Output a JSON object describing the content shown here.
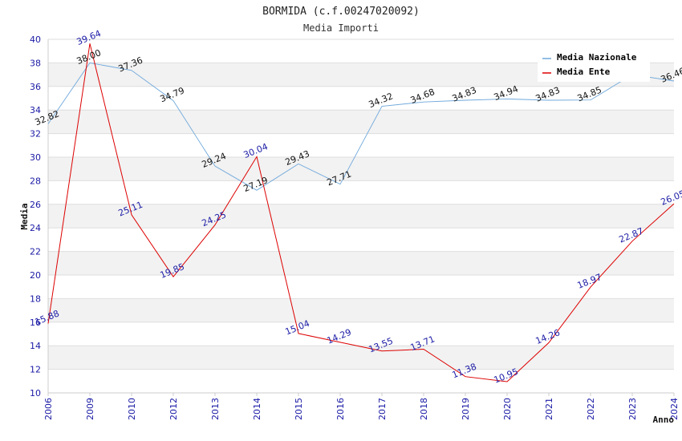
{
  "chart_data": {
    "type": "line",
    "title": "BORMIDA (c.f.00247020092)",
    "subtitle": "Media Importi",
    "xlabel": "Anno",
    "ylabel": "Media",
    "ylim": [
      10,
      40
    ],
    "yticks": [
      10,
      12,
      14,
      16,
      18,
      20,
      22,
      24,
      26,
      28,
      30,
      32,
      34,
      36,
      38,
      40
    ],
    "categories": [
      "2006",
      "2009",
      "2010",
      "2012",
      "2013",
      "2014",
      "2015",
      "2016",
      "2017",
      "2018",
      "2019",
      "2020",
      "2021",
      "2022",
      "2023",
      "2024"
    ],
    "series": [
      {
        "name": "Media Nazionale",
        "color": "#6fa8dc",
        "values": [
          32.82,
          38.0,
          37.36,
          34.79,
          29.24,
          27.19,
          29.43,
          27.71,
          34.32,
          34.68,
          34.83,
          34.94,
          34.83,
          34.85,
          37.0,
          36.46
        ],
        "labels": [
          "32.82",
          "38.00",
          "37.36",
          "34.79",
          "29.24",
          "27.19",
          "29.43",
          "27.71",
          "34.32",
          "34.68",
          "34.83",
          "34.94",
          "34.83",
          "34.85",
          "",
          "36.46"
        ]
      },
      {
        "name": "Media Ente",
        "color": "#dd0000",
        "values": [
          15.88,
          39.64,
          25.11,
          19.85,
          24.25,
          30.04,
          15.04,
          14.29,
          13.55,
          13.71,
          11.38,
          10.95,
          14.26,
          18.97,
          22.87,
          26.05
        ],
        "labels": [
          "15.88",
          "39.64",
          "25.11",
          "19.85",
          "24.25",
          "30.04",
          "15.04",
          "14.29",
          "13.55",
          "13.71",
          "11.38",
          "10.95",
          "14.26",
          "18.97",
          "22.87",
          "26.05"
        ]
      }
    ],
    "legend": "top-right",
    "grid": "alternating-bands"
  }
}
